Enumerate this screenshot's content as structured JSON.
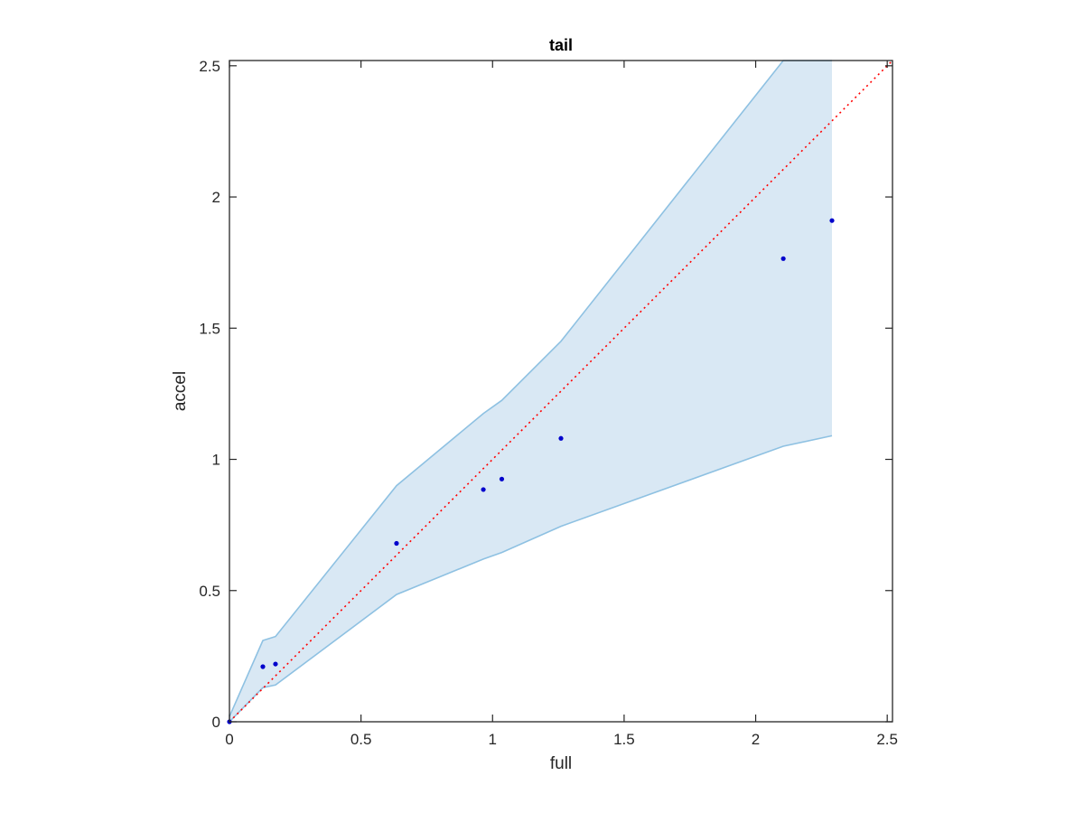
{
  "chart_data": {
    "type": "scatter",
    "title": "tail",
    "xlabel": "full",
    "ylabel": "accel",
    "xlim": [
      0,
      2.52
    ],
    "ylim": [
      0,
      2.52
    ],
    "xticks": [
      0,
      0.5,
      1,
      1.5,
      2,
      2.5
    ],
    "yticks": [
      0,
      0.5,
      1,
      1.5,
      2,
      2.5
    ],
    "xtick_labels": [
      "0",
      "0.5",
      "1",
      "1.5",
      "2",
      "2.5"
    ],
    "ytick_labels": [
      "0",
      "0.5",
      "1",
      "1.5",
      "2",
      "2.5"
    ],
    "grid": false,
    "points": {
      "x": [
        0,
        0.127,
        0.175,
        0.635,
        0.965,
        1.035,
        1.26,
        2.105,
        2.29
      ],
      "y": [
        0,
        0.21,
        0.22,
        0.68,
        0.885,
        0.925,
        1.08,
        1.765,
        1.91
      ],
      "color": "#0000cc"
    },
    "band": {
      "x": [
        0,
        0.127,
        0.175,
        0.635,
        0.965,
        1.035,
        1.26,
        2.105,
        2.29
      ],
      "upper": [
        0.02,
        0.31,
        0.325,
        0.9,
        1.175,
        1.225,
        1.45,
        2.52,
        2.52
      ],
      "lower": [
        0,
        0.13,
        0.14,
        0.485,
        0.62,
        0.645,
        0.745,
        1.05,
        1.09
      ],
      "fill_color": "#d9e8f4",
      "edge_color": "#8ec1e2"
    },
    "reference_line": {
      "x": [
        0,
        2.52
      ],
      "y": [
        0,
        2.52
      ],
      "style": "dotted",
      "color": "#ff0000"
    }
  }
}
